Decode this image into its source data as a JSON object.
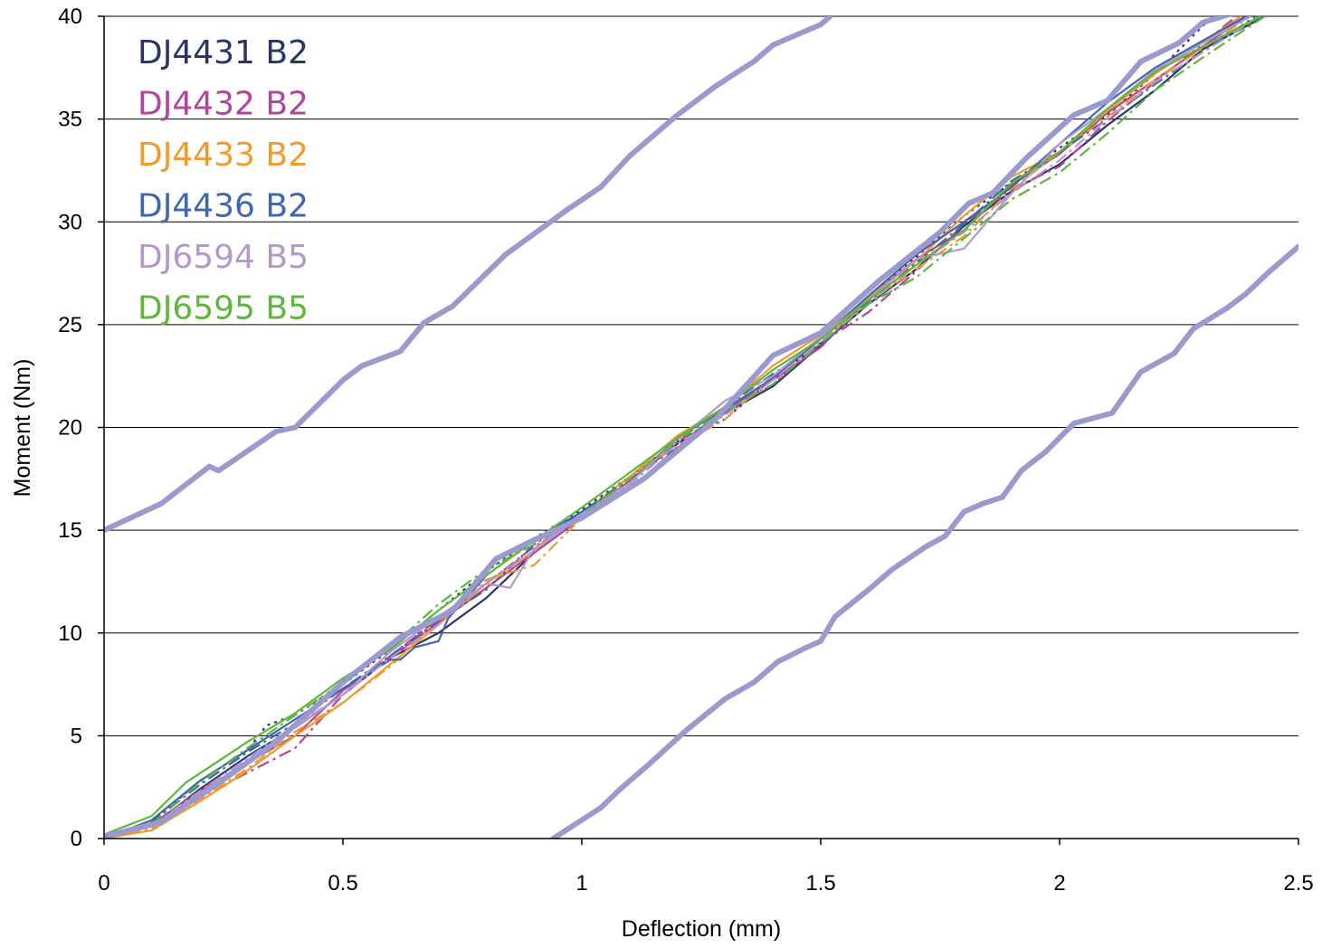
{
  "chart_data": {
    "type": "line",
    "title": "",
    "xlabel": "Deflection (mm)",
    "ylabel": "Moment (Nm)",
    "xlim": [
      0,
      2.5
    ],
    "ylim": [
      0,
      40
    ],
    "x_ticks": [
      "0",
      "0.5",
      "1",
      "1.5",
      "2",
      "2.5"
    ],
    "y_ticks": [
      "0",
      "5",
      "10",
      "15",
      "20",
      "25",
      "30",
      "35",
      "40"
    ],
    "grid": "horizontal",
    "legend_position": "top-left",
    "legend": [
      {
        "name": "DJ4431 B2",
        "color": "#2a3466"
      },
      {
        "name": "DJ4432 B2",
        "color": "#b2449a"
      },
      {
        "name": "DJ4433 B2",
        "color": "#f39a2c"
      },
      {
        "name": "DJ4436 B2",
        "color": "#4066b0"
      },
      {
        "name": "DJ6594 B5",
        "color": "#b597cc"
      },
      {
        "name": "DJ6595 B5",
        "color": "#5cb83c"
      }
    ],
    "series": [
      {
        "name": "DJ4431 B2",
        "color": "#2a3466",
        "dash": "solid",
        "x": [
          0,
          0.1,
          0.2,
          0.3,
          0.4,
          0.5,
          0.6,
          0.7,
          0.8,
          0.9,
          1.0,
          1.1,
          1.2,
          1.3,
          1.4,
          1.5,
          1.6,
          1.7,
          1.8,
          1.9,
          2.0,
          2.1,
          2.2,
          2.3,
          2.43
        ],
        "y": [
          0,
          0.6,
          2.4,
          4.0,
          5.4,
          7.0,
          8.8,
          10.0,
          11.7,
          13.9,
          15.6,
          17.4,
          19.2,
          20.7,
          22.0,
          24.0,
          26.0,
          27.7,
          29.8,
          31.5,
          32.8,
          34.7,
          36.4,
          38.4,
          40
        ]
      },
      {
        "name": "DJ4431 B2",
        "color": "#2a3466",
        "dash": "dot",
        "x": [
          0,
          0.1,
          0.2,
          0.3,
          0.34,
          0.4,
          0.5,
          0.6,
          0.7,
          0.8,
          0.9,
          1.0,
          1.1,
          1.2,
          1.3,
          1.4,
          1.5,
          1.6,
          1.7,
          1.8,
          1.9,
          2.0,
          2.1,
          2.2,
          2.32
        ],
        "y": [
          0,
          0.8,
          2.8,
          4.3,
          5.5,
          6.0,
          7.5,
          9.2,
          11.1,
          13.0,
          14.6,
          16.0,
          17.6,
          19.3,
          20.4,
          22.4,
          24.1,
          26.4,
          28.3,
          30.3,
          31.9,
          33.6,
          35.2,
          37.2,
          40
        ]
      },
      {
        "name": "DJ4432 B2",
        "color": "#b2449a",
        "dash": "solid",
        "x": [
          0,
          0.1,
          0.2,
          0.3,
          0.4,
          0.5,
          0.6,
          0.7,
          0.8,
          0.9,
          1.0,
          1.1,
          1.2,
          1.3,
          1.4,
          1.5,
          1.6,
          1.7,
          1.8,
          1.9,
          2.0,
          2.1,
          2.2,
          2.39
        ],
        "y": [
          0,
          0.7,
          2.3,
          3.7,
          5.0,
          7.2,
          8.8,
          10.5,
          12.2,
          13.9,
          15.6,
          17.0,
          19.0,
          20.8,
          22.3,
          23.9,
          26.3,
          28.2,
          29.6,
          31.8,
          33.3,
          35.3,
          36.9,
          40
        ]
      },
      {
        "name": "DJ4432 B2",
        "color": "#b2449a",
        "dash": "dashdot",
        "x": [
          0,
          0.1,
          0.2,
          0.3,
          0.4,
          0.5,
          0.6,
          0.7,
          0.8,
          0.9,
          1.0,
          1.1,
          1.2,
          1.3,
          1.4,
          1.5,
          1.6,
          1.7,
          1.8,
          1.9,
          2.0,
          2.1,
          2.2,
          2.37
        ],
        "y": [
          0,
          0.5,
          2.0,
          3.2,
          4.4,
          7.0,
          8.9,
          10.7,
          12.4,
          14.2,
          15.6,
          17.4,
          19.3,
          20.7,
          22.1,
          24.1,
          25.6,
          27.6,
          29.9,
          31.6,
          32.7,
          34.9,
          36.8,
          40
        ]
      },
      {
        "name": "DJ4433 B2",
        "color": "#f39a2c",
        "dash": "solid",
        "x": [
          0,
          0.1,
          0.2,
          0.3,
          0.4,
          0.5,
          0.6,
          0.7,
          0.8,
          0.9,
          1.0,
          1.1,
          1.2,
          1.3,
          1.4,
          1.5,
          1.6,
          1.7,
          1.8,
          1.9,
          2.0,
          2.1,
          2.2,
          2.38
        ],
        "y": [
          0,
          0.4,
          1.8,
          3.3,
          5.0,
          6.6,
          8.5,
          10.4,
          12.4,
          14.0,
          15.8,
          17.6,
          19.6,
          21.0,
          23.0,
          24.5,
          26.3,
          28.1,
          30.3,
          32.2,
          33.4,
          35.4,
          37.2,
          40
        ]
      },
      {
        "name": "DJ4433 B2",
        "color": "#f39a2c",
        "dash": "dashdot",
        "x": [
          0,
          0.1,
          0.2,
          0.3,
          0.4,
          0.5,
          0.6,
          0.7,
          0.8,
          0.9,
          1.0,
          1.1,
          1.2,
          1.3,
          1.4,
          1.5,
          1.6,
          1.7,
          1.8,
          1.9,
          2.0,
          2.1,
          2.2,
          2.4
        ],
        "y": [
          0,
          0.5,
          1.9,
          3.4,
          5.2,
          6.6,
          8.4,
          10.7,
          12.6,
          13.3,
          15.6,
          17.6,
          19.1,
          20.4,
          22.5,
          24.3,
          26.1,
          27.7,
          29.3,
          31.6,
          33.4,
          35.1,
          36.9,
          40
        ]
      },
      {
        "name": "DJ4436 B2",
        "color": "#4066b0",
        "dash": "solid",
        "x": [
          0,
          0.1,
          0.2,
          0.3,
          0.4,
          0.5,
          0.6,
          0.62,
          0.65,
          0.7,
          0.72,
          0.8,
          0.9,
          1.0,
          1.1,
          1.2,
          1.3,
          1.4,
          1.5,
          1.6,
          1.7,
          1.8,
          1.9,
          2.0,
          2.1,
          2.2,
          2.39
        ],
        "y": [
          0,
          0.9,
          2.8,
          4.3,
          5.8,
          7.3,
          8.7,
          8.7,
          9.3,
          9.6,
          10.7,
          12.8,
          14.5,
          15.9,
          17.3,
          19.5,
          20.9,
          22.4,
          24.3,
          26.4,
          28.4,
          30.0,
          31.7,
          33.8,
          35.8,
          37.5,
          40
        ]
      },
      {
        "name": "DJ4436 B2",
        "color": "#4066b0",
        "dash": "dashdot",
        "x": [
          0,
          0.1,
          0.2,
          0.3,
          0.4,
          0.5,
          0.6,
          0.7,
          0.8,
          0.9,
          1.0,
          1.1,
          1.2,
          1.3,
          1.4,
          1.5,
          1.6,
          1.7,
          1.8,
          1.9,
          2.0,
          2.1,
          2.2,
          2.41
        ],
        "y": [
          0,
          0.8,
          2.6,
          4.2,
          5.6,
          7.3,
          8.9,
          10.6,
          12.1,
          14.3,
          15.9,
          17.5,
          19.0,
          21.0,
          22.6,
          24.0,
          26.1,
          28.0,
          29.9,
          32.0,
          33.4,
          35.0,
          36.7,
          40
        ]
      },
      {
        "name": "DJ6594 B5",
        "color": "#b597cc",
        "dash": "solid",
        "x": [
          0,
          0.1,
          0.2,
          0.3,
          0.4,
          0.5,
          0.6,
          0.7,
          0.8,
          0.85,
          0.9,
          1.0,
          1.1,
          1.2,
          1.3,
          1.4,
          1.5,
          1.6,
          1.7,
          1.8,
          1.9,
          2.0,
          2.1,
          2.2,
          2.4
        ],
        "y": [
          0,
          0.6,
          2.2,
          3.8,
          5.4,
          7.0,
          9.1,
          10.8,
          12.4,
          12.2,
          14.1,
          15.8,
          17.3,
          19.4,
          21.3,
          22.5,
          24.4,
          26.2,
          28.2,
          28.7,
          31.4,
          33.8,
          35.5,
          37.4,
          40
        ]
      },
      {
        "name": "DJ6594 B5",
        "color": "#b597cc",
        "dash": "dashdot",
        "x": [
          0,
          0.1,
          0.2,
          0.3,
          0.4,
          0.5,
          0.6,
          0.7,
          0.8,
          0.9,
          1.0,
          1.1,
          1.2,
          1.3,
          1.4,
          1.5,
          1.6,
          1.7,
          1.8,
          1.9,
          2.0,
          2.1,
          2.2,
          2.42
        ],
        "y": [
          0,
          0.6,
          2.3,
          3.9,
          5.5,
          7.0,
          8.8,
          10.4,
          12.5,
          14.0,
          15.7,
          17.2,
          19.2,
          20.6,
          22.3,
          24.2,
          26.0,
          27.9,
          29.5,
          31.4,
          33.0,
          35.0,
          36.8,
          40
        ]
      },
      {
        "name": "DJ6595 B5",
        "color": "#5cb83c",
        "dash": "solid",
        "x": [
          0,
          0.1,
          0.17,
          0.3,
          0.4,
          0.5,
          0.6,
          0.7,
          0.8,
          0.9,
          1.0,
          1.1,
          1.2,
          1.3,
          1.4,
          1.5,
          1.6,
          1.7,
          1.8,
          1.9,
          2.0,
          2.1,
          2.2,
          2.42
        ],
        "y": [
          0.2,
          1.1,
          2.7,
          4.7,
          6.1,
          7.8,
          9.2,
          11.1,
          12.8,
          14.5,
          16.1,
          17.8,
          19.5,
          21.0,
          22.8,
          24.3,
          26.2,
          27.9,
          29.6,
          31.9,
          33.4,
          35.5,
          37.3,
          40
        ]
      },
      {
        "name": "DJ6595 B5",
        "color": "#5cb83c",
        "dash": "dashdot",
        "x": [
          0,
          0.1,
          0.2,
          0.3,
          0.4,
          0.5,
          0.6,
          0.7,
          0.8,
          0.9,
          1.0,
          1.1,
          1.2,
          1.3,
          1.4,
          1.5,
          1.6,
          1.7,
          1.8,
          1.9,
          2.0,
          2.1,
          2.2,
          2.3,
          2.43
        ],
        "y": [
          0,
          0.7,
          2.7,
          4.4,
          6.0,
          7.6,
          9.3,
          11.4,
          13.1,
          14.3,
          15.7,
          17.5,
          19.4,
          20.8,
          22.1,
          24.1,
          26.0,
          27.3,
          29.2,
          31.1,
          32.4,
          34.3,
          36.4,
          38.0,
          40
        ]
      },
      {
        "name": "",
        "color": "#9a9ace",
        "dash": "bold",
        "x": [
          0,
          0.12,
          0.22,
          0.24,
          0.36,
          0.4,
          0.5,
          0.54,
          0.62,
          0.67,
          0.73,
          0.84,
          0.97,
          1.04,
          1.1,
          1.2,
          1.28,
          1.36,
          1.4,
          1.5,
          1.52
        ],
        "y": [
          15,
          16.3,
          18.1,
          17.9,
          19.8,
          20.0,
          22.3,
          23.0,
          23.7,
          25.1,
          25.9,
          28.4,
          30.6,
          31.7,
          33.2,
          35.2,
          36.6,
          37.8,
          38.6,
          39.6,
          40
        ]
      },
      {
        "name": "",
        "color": "#9a9ace",
        "dash": "bold",
        "x": [
          0,
          0.12,
          0.17,
          0.24,
          0.36,
          0.5,
          0.62,
          0.73,
          0.82,
          0.88,
          1.0,
          1.13,
          1.28,
          1.4,
          1.5,
          1.62,
          1.75,
          1.81,
          1.86,
          1.93,
          2.03,
          2.1,
          2.17,
          2.25,
          2.3,
          2.37,
          2.42
        ],
        "y": [
          0.1,
          0.8,
          1.6,
          2.7,
          4.7,
          7.6,
          9.8,
          11.1,
          13.6,
          14.3,
          15.6,
          17.5,
          20.4,
          23.5,
          24.6,
          27.1,
          29.5,
          30.9,
          31.4,
          33.1,
          35.2,
          35.9,
          37.8,
          38.7,
          39.7,
          40.2,
          40.4
        ]
      },
      {
        "name": "",
        "color": "#9a9ace",
        "dash": "bold",
        "x": [
          0.94,
          1.0,
          1.04,
          1.08,
          1.14,
          1.22,
          1.3,
          1.36,
          1.41,
          1.47,
          1.5,
          1.53,
          1.6,
          1.65,
          1.72,
          1.76,
          1.8,
          1.84,
          1.88,
          1.92,
          1.97,
          2.03,
          2.11,
          2.17,
          2.24,
          2.28,
          2.35,
          2.39,
          2.44,
          2.5
        ],
        "y": [
          0,
          0.9,
          1.5,
          2.4,
          3.6,
          5.3,
          6.8,
          7.6,
          8.6,
          9.3,
          9.6,
          10.8,
          12.1,
          13.1,
          14.2,
          14.7,
          15.9,
          16.3,
          16.6,
          17.9,
          18.8,
          20.2,
          20.7,
          22.7,
          23.6,
          24.8,
          25.8,
          26.5,
          27.6,
          28.8
        ]
      }
    ]
  }
}
